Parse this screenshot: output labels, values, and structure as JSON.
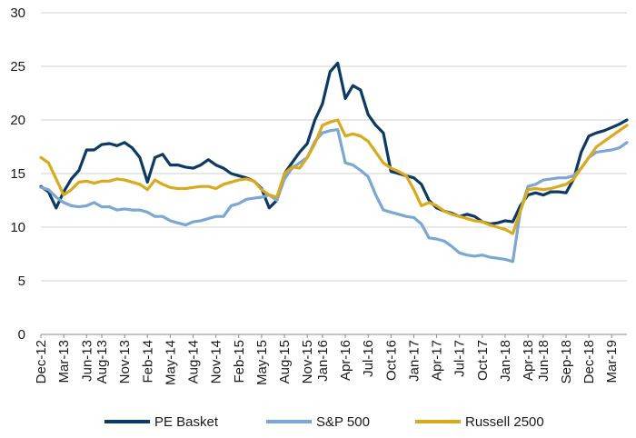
{
  "chart_data": {
    "type": "line",
    "title": "",
    "xlabel": "",
    "ylabel": "",
    "ylim": [
      0,
      30
    ],
    "yticks": [
      0,
      5,
      10,
      15,
      20,
      25,
      30
    ],
    "grid": "horizontal",
    "legend_position": "bottom",
    "xtick_labels": [
      "Dec-12",
      "Mar-13",
      "Jun-13",
      "Aug-13",
      "Nov-13",
      "Feb-14",
      "May-14",
      "Aug-14",
      "Nov-14",
      "Feb-15",
      "May-15",
      "Aug-15",
      "Nov-15",
      "Jan-16",
      "Apr-16",
      "Jul-16",
      "Oct-16",
      "Jan-17",
      "Apr-17",
      "Jul-17",
      "Oct-17",
      "Jan-18",
      "Apr-18",
      "Jun-18",
      "Sep-18",
      "Dec-18",
      "Mar-19"
    ],
    "x": [
      "Dec-12",
      "Jan-13",
      "Feb-13",
      "Mar-13",
      "Apr-13",
      "May-13",
      "Jun-13",
      "Jul-13",
      "Aug-13",
      "Sep-13",
      "Oct-13",
      "Nov-13",
      "Dec-13",
      "Jan-14",
      "Feb-14",
      "Mar-14",
      "Apr-14",
      "May-14",
      "Jun-14",
      "Jul-14",
      "Aug-14",
      "Sep-14",
      "Oct-14",
      "Nov-14",
      "Dec-14",
      "Jan-15",
      "Feb-15",
      "Mar-15",
      "Apr-15",
      "May-15",
      "Jun-15",
      "Jul-15",
      "Aug-15",
      "Sep-15",
      "Oct-15",
      "Nov-15",
      "Dec-15",
      "Jan-16",
      "Feb-16",
      "Mar-16",
      "Apr-16",
      "May-16",
      "Jun-16",
      "Jul-16",
      "Aug-16",
      "Sep-16",
      "Oct-16",
      "Nov-16",
      "Dec-16",
      "Jan-17",
      "Feb-17",
      "Mar-17",
      "Apr-17",
      "May-17",
      "Jun-17",
      "Jul-17",
      "Aug-17",
      "Sep-17",
      "Oct-17",
      "Nov-17",
      "Dec-17",
      "Jan-18",
      "Feb-18",
      "Mar-18",
      "Apr-18",
      "May-18",
      "Jun-18",
      "Jul-18",
      "Aug-18",
      "Sep-18",
      "Oct-18",
      "Nov-18",
      "Dec-18",
      "Jan-19",
      "Feb-19",
      "Mar-19",
      "Apr-19",
      "May-19"
    ],
    "series": [
      {
        "name": "PE Basket",
        "color": "#0d3a63",
        "values": [
          13.8,
          13.3,
          11.8,
          13.3,
          14.5,
          15.3,
          17.2,
          17.2,
          17.7,
          17.8,
          17.6,
          17.9,
          17.4,
          16.5,
          14.2,
          16.5,
          16.8,
          15.8,
          15.8,
          15.6,
          15.5,
          15.8,
          16.3,
          15.8,
          15.5,
          15.0,
          14.8,
          14.6,
          14.3,
          13.6,
          11.8,
          12.5,
          15.0,
          16.0,
          17.0,
          17.8,
          20.0,
          21.5,
          24.5,
          25.3,
          22.0,
          23.2,
          22.8,
          20.5,
          19.5,
          18.8,
          15.2,
          15.0,
          14.8,
          14.6,
          14.0,
          12.5,
          11.8,
          11.5,
          11.3,
          11.0,
          11.2,
          11.0,
          10.5,
          10.3,
          10.4,
          10.6,
          10.5,
          12.0,
          13.0,
          13.2,
          13.0,
          13.3,
          13.3,
          13.2,
          14.5,
          17.0,
          18.5,
          18.8,
          19.0,
          19.3,
          19.6,
          20.0
        ]
      },
      {
        "name": "S&P 500",
        "color": "#7ba7d4",
        "values": [
          13.7,
          13.5,
          12.8,
          12.3,
          12.0,
          11.9,
          12.0,
          12.3,
          11.9,
          11.9,
          11.6,
          11.7,
          11.6,
          11.6,
          11.4,
          11.0,
          11.0,
          10.6,
          10.4,
          10.2,
          10.5,
          10.6,
          10.8,
          11.0,
          11.0,
          12.0,
          12.2,
          12.6,
          12.7,
          12.8,
          13.0,
          12.5,
          14.5,
          15.5,
          16.0,
          16.5,
          18.0,
          18.8,
          19.0,
          19.1,
          16.0,
          15.8,
          15.3,
          14.7,
          13.0,
          11.6,
          11.4,
          11.2,
          11.0,
          10.9,
          10.3,
          9.0,
          8.9,
          8.7,
          8.2,
          7.6,
          7.4,
          7.3,
          7.4,
          7.2,
          7.1,
          7.0,
          6.8,
          11.5,
          13.8,
          14.0,
          14.4,
          14.5,
          14.6,
          14.6,
          14.8,
          15.5,
          16.5,
          17.0,
          17.1,
          17.2,
          17.4,
          17.9
        ]
      },
      {
        "name": "Russell 2500",
        "color": "#d9a91e",
        "values": [
          16.5,
          16.0,
          14.5,
          13.0,
          13.5,
          14.2,
          14.3,
          14.1,
          14.3,
          14.3,
          14.5,
          14.4,
          14.2,
          14.0,
          13.5,
          14.4,
          14.0,
          13.7,
          13.6,
          13.6,
          13.7,
          13.8,
          13.8,
          13.6,
          14.0,
          14.2,
          14.4,
          14.5,
          14.3,
          13.5,
          13.0,
          12.8,
          15.0,
          15.6,
          15.5,
          16.5,
          17.8,
          19.5,
          19.8,
          20.0,
          18.5,
          18.7,
          18.5,
          18.0,
          17.0,
          16.0,
          15.5,
          15.2,
          14.8,
          13.5,
          12.0,
          12.3,
          12.0,
          11.5,
          11.2,
          11.0,
          10.8,
          10.6,
          10.5,
          10.2,
          10.0,
          9.8,
          9.4,
          11.5,
          13.5,
          13.6,
          13.5,
          13.6,
          13.8,
          14.0,
          14.5,
          15.5,
          16.5,
          17.5,
          18.0,
          18.5,
          19.0,
          19.5
        ]
      }
    ]
  }
}
